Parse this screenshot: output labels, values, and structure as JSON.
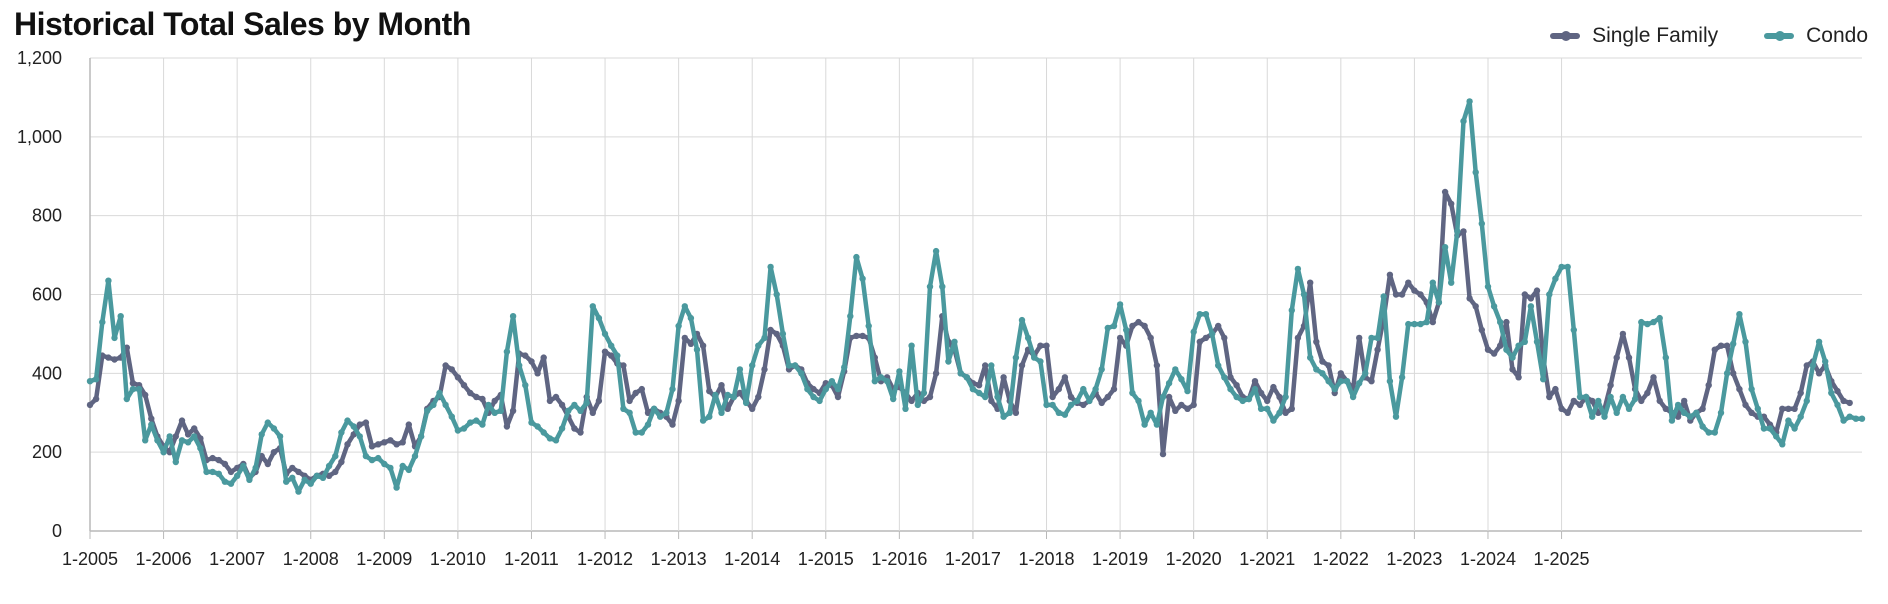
{
  "title": "Historical Total Sales by Month",
  "colors": {
    "single_family": "#5f6582",
    "condo": "#4a999e",
    "grid": "#d9d9d9",
    "axis": "#b9b9b9"
  },
  "chart_data": {
    "type": "line",
    "title": "Historical Total Sales by Month",
    "xlabel": "",
    "ylabel": "",
    "ylim": [
      0,
      1200
    ],
    "yticks": [
      "0",
      "200",
      "400",
      "600",
      "800",
      "1,000",
      "1,200"
    ],
    "xticks": [
      "1-2005",
      "1-2006",
      "1-2007",
      "1-2008",
      "1-2009",
      "1-2010",
      "1-2011",
      "1-2012",
      "1-2013",
      "1-2014",
      "1-2015",
      "1-2016",
      "1-2017",
      "1-2018",
      "1-2019",
      "1-2020",
      "1-2021",
      "1-2022",
      "1-2023",
      "1-2024",
      "1-2025"
    ],
    "start_month": "1-2005",
    "grid": true,
    "legend": "top-right",
    "series": [
      {
        "name": "Single Family",
        "color": "#5f6582",
        "values": [
          320,
          335,
          445,
          440,
          435,
          440,
          465,
          375,
          370,
          345,
          285,
          240,
          215,
          200,
          240,
          280,
          245,
          260,
          235,
          180,
          185,
          180,
          170,
          150,
          160,
          170,
          135,
          150,
          190,
          170,
          200,
          210,
          145,
          160,
          150,
          140,
          130,
          140,
          145,
          140,
          150,
          175,
          220,
          245,
          270,
          275,
          215,
          220,
          225,
          230,
          220,
          225,
          270,
          215,
          240,
          310,
          330,
          340,
          420,
          410,
          390,
          370,
          350,
          340,
          335,
          300,
          330,
          345,
          265,
          305,
          450,
          445,
          430,
          400,
          440,
          330,
          340,
          320,
          290,
          260,
          250,
          340,
          300,
          330,
          455,
          445,
          425,
          420,
          330,
          350,
          360,
          300,
          310,
          300,
          290,
          270,
          330,
          490,
          475,
          500,
          470,
          355,
          340,
          370,
          310,
          340,
          350,
          330,
          310,
          340,
          410,
          510,
          500,
          470,
          410,
          420,
          410,
          375,
          360,
          350,
          375,
          370,
          340,
          405,
          490,
          495,
          495,
          490,
          440,
          380,
          390,
          360,
          365,
          350,
          330,
          350,
          330,
          340,
          400,
          545,
          480,
          460,
          400,
          390,
          375,
          370,
          420,
          330,
          310,
          390,
          330,
          300,
          420,
          460,
          445,
          470,
          470,
          340,
          360,
          390,
          340,
          325,
          320,
          330,
          350,
          325,
          340,
          360,
          490,
          470,
          520,
          530,
          520,
          490,
          420,
          195,
          340,
          305,
          320,
          310,
          320,
          480,
          490,
          500,
          520,
          490,
          390,
          370,
          340,
          335,
          380,
          350,
          330,
          365,
          340,
          300,
          310,
          490,
          520,
          630,
          480,
          430,
          420,
          350,
          400,
          380,
          360,
          490,
          390,
          380,
          460,
          540,
          650,
          600,
          600,
          630,
          610,
          600,
          580,
          530,
          580,
          860,
          830,
          750,
          760,
          590,
          570,
          510,
          460,
          450,
          470,
          530,
          410,
          390,
          600,
          590,
          610,
          440,
          340,
          360,
          310,
          300,
          330,
          320,
          340,
          330,
          300,
          310,
          370,
          440,
          500,
          440,
          360,
          330,
          350,
          390,
          330,
          310,
          300,
          290,
          330,
          280,
          300,
          310,
          370,
          460,
          470,
          470,
          400,
          360,
          320,
          300,
          290,
          290,
          270,
          250,
          310,
          310,
          310,
          350,
          420,
          430,
          400,
          420,
          380,
          355,
          330,
          325
        ]
      },
      {
        "name": "Condo",
        "color": "#4a999e",
        "values": [
          380,
          385,
          530,
          635,
          490,
          545,
          335,
          360,
          360,
          230,
          270,
          230,
          200,
          240,
          175,
          230,
          225,
          240,
          210,
          150,
          150,
          145,
          125,
          120,
          140,
          165,
          130,
          160,
          245,
          275,
          260,
          240,
          125,
          135,
          100,
          130,
          120,
          140,
          135,
          165,
          190,
          250,
          280,
          265,
          240,
          190,
          180,
          185,
          170,
          160,
          110,
          165,
          155,
          190,
          240,
          305,
          320,
          350,
          320,
          290,
          255,
          260,
          275,
          280,
          270,
          320,
          300,
          305,
          455,
          545,
          420,
          370,
          275,
          265,
          250,
          235,
          230,
          260,
          305,
          320,
          305,
          325,
          570,
          540,
          500,
          470,
          445,
          310,
          300,
          250,
          250,
          270,
          310,
          290,
          300,
          360,
          520,
          570,
          540,
          460,
          280,
          290,
          345,
          300,
          345,
          340,
          410,
          325,
          420,
          470,
          490,
          670,
          600,
          500,
          420,
          420,
          400,
          360,
          340,
          330,
          360,
          380,
          360,
          415,
          545,
          695,
          640,
          520,
          380,
          390,
          380,
          335,
          405,
          310,
          470,
          320,
          350,
          620,
          710,
          620,
          430,
          480,
          400,
          390,
          360,
          350,
          340,
          420,
          340,
          290,
          300,
          440,
          535,
          490,
          440,
          430,
          320,
          320,
          300,
          295,
          320,
          330,
          360,
          330,
          360,
          410,
          515,
          520,
          575,
          510,
          350,
          330,
          270,
          300,
          270,
          340,
          375,
          410,
          385,
          355,
          505,
          550,
          550,
          500,
          420,
          390,
          360,
          340,
          330,
          335,
          360,
          310,
          310,
          280,
          300,
          340,
          560,
          665,
          600,
          440,
          410,
          400,
          380,
          360,
          380,
          380,
          340,
          375,
          400,
          490,
          490,
          595,
          380,
          290,
          390,
          525,
          525,
          525,
          530,
          630,
          580,
          720,
          630,
          760,
          1040,
          1090,
          910,
          780,
          620,
          570,
          530,
          460,
          440,
          470,
          480,
          570,
          480,
          385,
          600,
          640,
          670,
          670,
          510,
          340,
          340,
          290,
          330,
          290,
          340,
          300,
          340,
          310,
          335,
          530,
          525,
          530,
          540,
          440,
          280,
          320,
          300,
          290,
          300,
          265,
          250,
          250,
          300,
          400,
          475,
          550,
          480,
          360,
          310,
          260,
          260,
          240,
          220,
          280,
          260,
          290,
          330,
          420,
          480,
          430,
          350,
          320,
          280,
          290,
          285,
          285
        ]
      }
    ]
  }
}
